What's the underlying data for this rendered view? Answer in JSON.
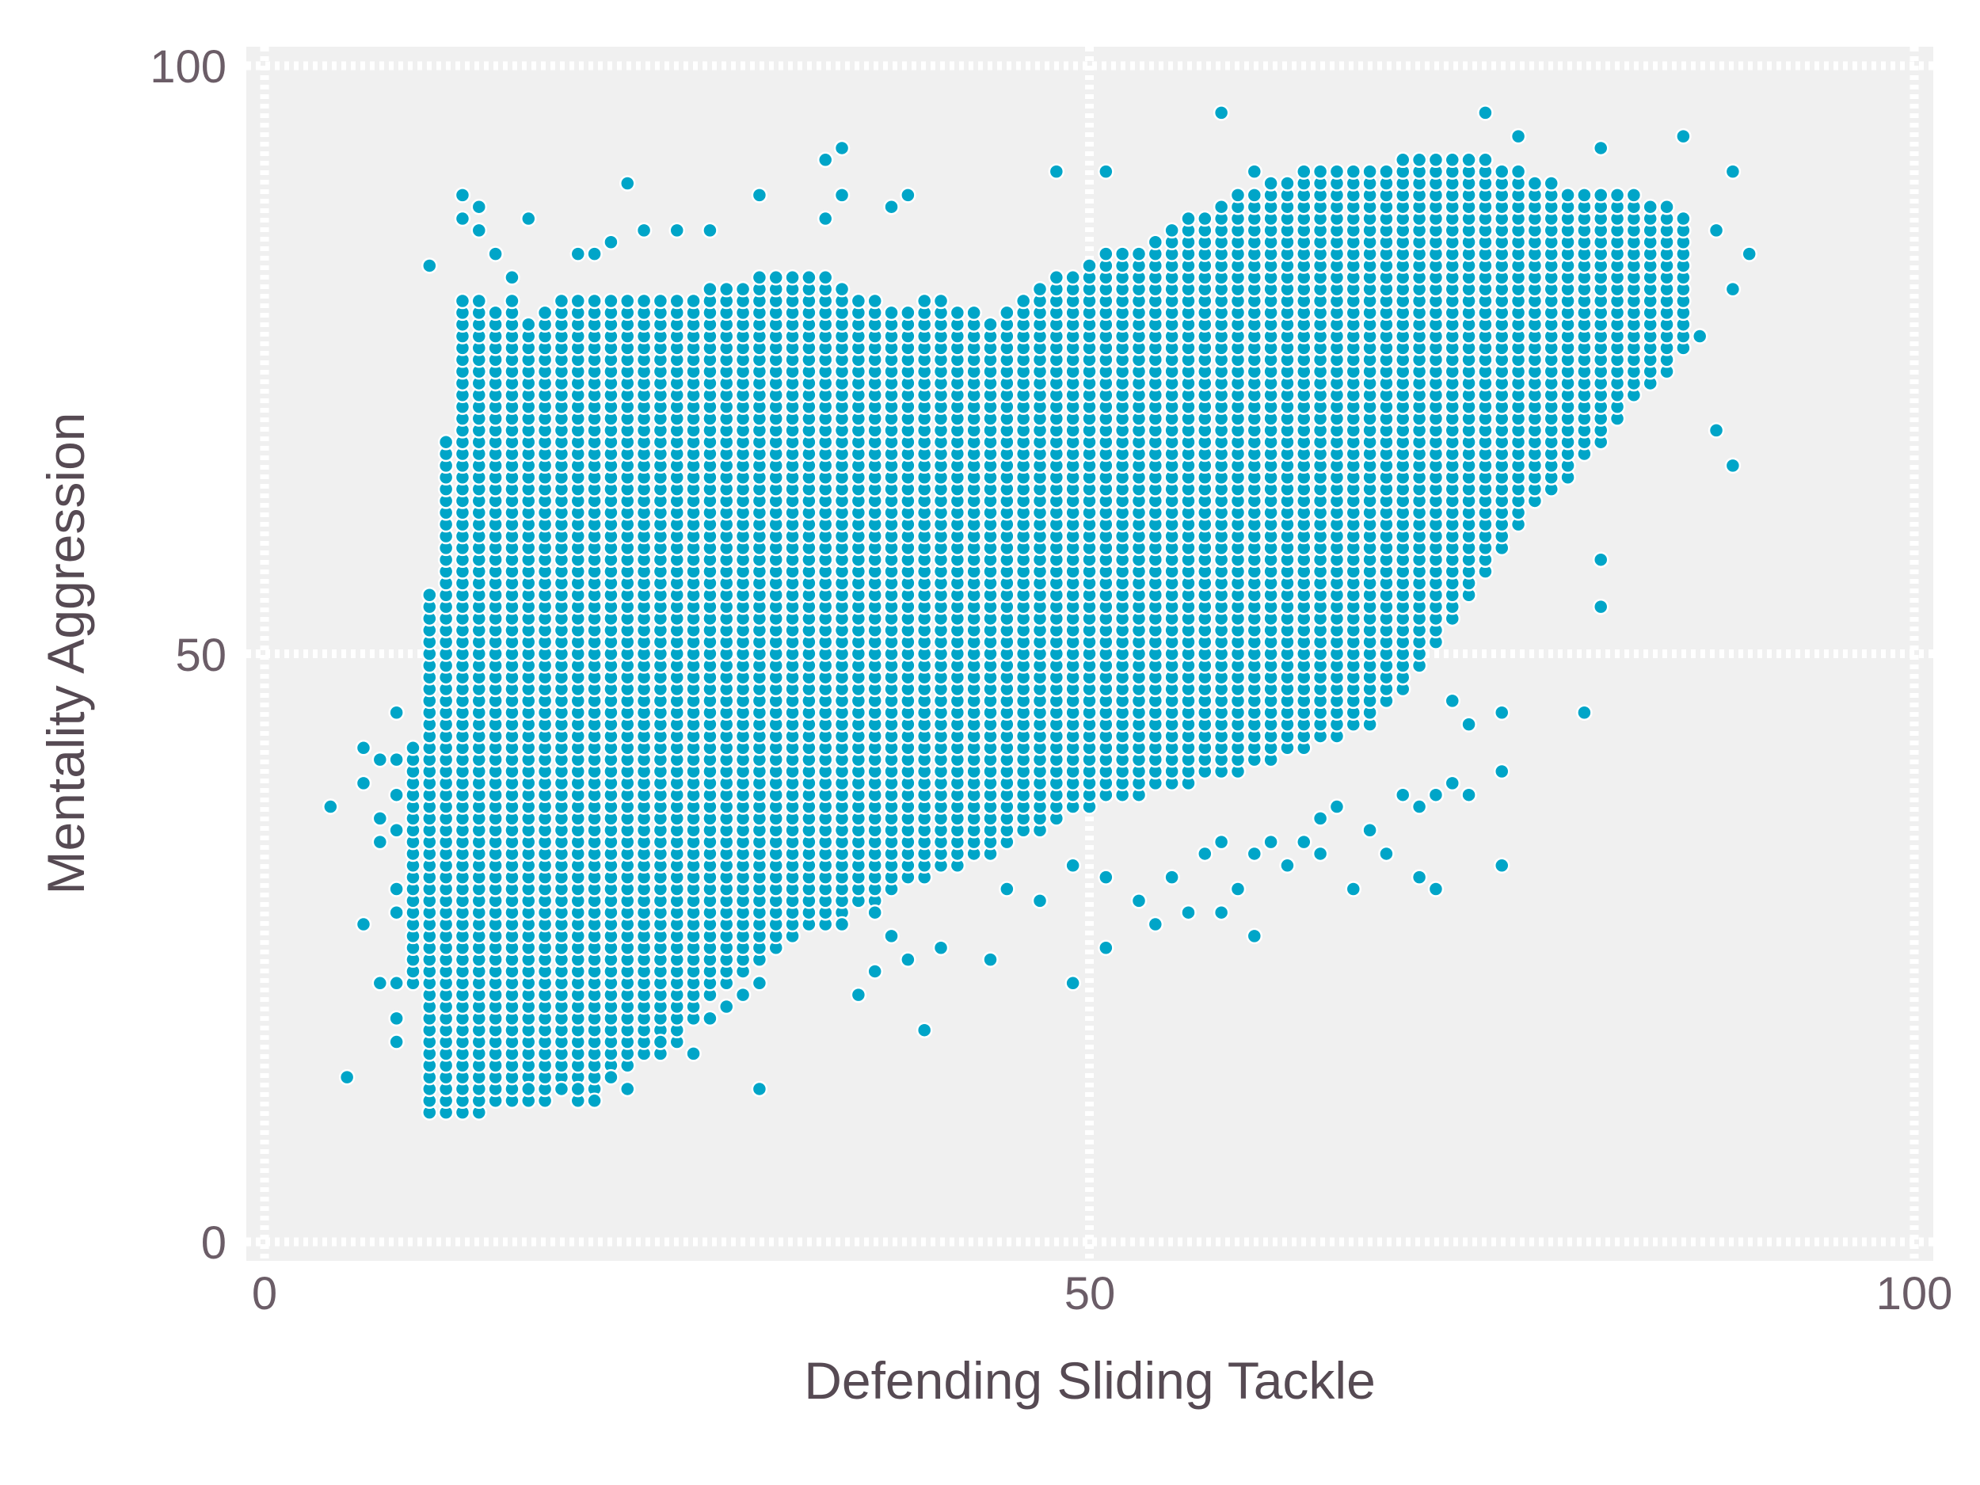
{
  "chart_data": {
    "type": "scatter",
    "title": "",
    "xlabel": "Defending Sliding Tackle",
    "ylabel": "Mentality Aggression",
    "xlim": [
      0,
      100
    ],
    "ylim": [
      0,
      100
    ],
    "x_ticks": [
      "0",
      "50",
      "100"
    ],
    "y_ticks": [
      "0",
      "50",
      "100"
    ],
    "grid": true,
    "grid_style": "dotted",
    "background_color": "#f0f0f0",
    "point_color": "#00a5c8",
    "point_edge_color": "#ffffff",
    "note_values": "integer-valued points; dense region given as per-x inclusive y ranges, plus isolated points",
    "dense_columns": [
      [
        9,
        22,
        42
      ],
      [
        10,
        11,
        55
      ],
      [
        11,
        11,
        68
      ],
      [
        12,
        11,
        80
      ],
      [
        13,
        11,
        80
      ],
      [
        14,
        12,
        79
      ],
      [
        15,
        12,
        80
      ],
      [
        16,
        12,
        78
      ],
      [
        17,
        12,
        79
      ],
      [
        18,
        13,
        80
      ],
      [
        19,
        12,
        80
      ],
      [
        20,
        13,
        80
      ],
      [
        21,
        14,
        80
      ],
      [
        22,
        15,
        80
      ],
      [
        23,
        16,
        80
      ],
      [
        24,
        16,
        80
      ],
      [
        25,
        17,
        80
      ],
      [
        26,
        19,
        80
      ],
      [
        27,
        21,
        81
      ],
      [
        28,
        22,
        81
      ],
      [
        29,
        23,
        81
      ],
      [
        30,
        24,
        82
      ],
      [
        31,
        25,
        82
      ],
      [
        32,
        26,
        82
      ],
      [
        33,
        27,
        82
      ],
      [
        34,
        27,
        82
      ],
      [
        35,
        28,
        81
      ],
      [
        36,
        29,
        80
      ],
      [
        37,
        29,
        80
      ],
      [
        38,
        30,
        79
      ],
      [
        39,
        31,
        79
      ],
      [
        40,
        31,
        80
      ],
      [
        41,
        32,
        80
      ],
      [
        42,
        32,
        79
      ],
      [
        43,
        33,
        79
      ],
      [
        44,
        33,
        78
      ],
      [
        45,
        34,
        79
      ],
      [
        46,
        35,
        80
      ],
      [
        47,
        35,
        81
      ],
      [
        48,
        36,
        82
      ],
      [
        49,
        37,
        82
      ],
      [
        50,
        37,
        83
      ],
      [
        51,
        38,
        84
      ],
      [
        52,
        38,
        84
      ],
      [
        53,
        38,
        84
      ],
      [
        54,
        39,
        85
      ],
      [
        55,
        39,
        86
      ],
      [
        56,
        39,
        87
      ],
      [
        57,
        40,
        87
      ],
      [
        58,
        40,
        88
      ],
      [
        59,
        40,
        89
      ],
      [
        60,
        41,
        89
      ],
      [
        61,
        41,
        90
      ],
      [
        62,
        42,
        90
      ],
      [
        63,
        42,
        90
      ],
      [
        64,
        43,
        91
      ],
      [
        65,
        43,
        91
      ],
      [
        66,
        44,
        91
      ],
      [
        67,
        44,
        91
      ],
      [
        68,
        46,
        91
      ],
      [
        69,
        47,
        92
      ],
      [
        70,
        49,
        92
      ],
      [
        71,
        51,
        92
      ],
      [
        72,
        53,
        92
      ],
      [
        73,
        55,
        92
      ],
      [
        74,
        57,
        92
      ],
      [
        75,
        59,
        91
      ],
      [
        76,
        61,
        91
      ],
      [
        77,
        63,
        90
      ],
      [
        78,
        64,
        90
      ],
      [
        79,
        65,
        89
      ],
      [
        80,
        67,
        89
      ],
      [
        81,
        68,
        89
      ],
      [
        82,
        70,
        89
      ],
      [
        83,
        72,
        89
      ],
      [
        84,
        73,
        88
      ],
      [
        85,
        74,
        88
      ],
      [
        86,
        76,
        87
      ]
    ],
    "points": [
      [
        4,
        37
      ],
      [
        5,
        14
      ],
      [
        6,
        42
      ],
      [
        6,
        39
      ],
      [
        6,
        27
      ],
      [
        7,
        41
      ],
      [
        7,
        36
      ],
      [
        7,
        34
      ],
      [
        7,
        22
      ],
      [
        8,
        45
      ],
      [
        8,
        41
      ],
      [
        8,
        38
      ],
      [
        8,
        35
      ],
      [
        8,
        30
      ],
      [
        8,
        28
      ],
      [
        8,
        22
      ],
      [
        8,
        19
      ],
      [
        8,
        17
      ],
      [
        10,
        83
      ],
      [
        12,
        89
      ],
      [
        12,
        87
      ],
      [
        13,
        86
      ],
      [
        13,
        88
      ],
      [
        14,
        84
      ],
      [
        15,
        82
      ],
      [
        16,
        87
      ],
      [
        19,
        84
      ],
      [
        20,
        84
      ],
      [
        21,
        85
      ],
      [
        22,
        90
      ],
      [
        23,
        86
      ],
      [
        25,
        86
      ],
      [
        27,
        86
      ],
      [
        30,
        89
      ],
      [
        34,
        92
      ],
      [
        35,
        93
      ],
      [
        35,
        89
      ],
      [
        34,
        87
      ],
      [
        38,
        88
      ],
      [
        39,
        89
      ],
      [
        48,
        91
      ],
      [
        51,
        91
      ],
      [
        58,
        96
      ],
      [
        60,
        91
      ],
      [
        63,
        91
      ],
      [
        69,
        92
      ],
      [
        74,
        96
      ],
      [
        76,
        94
      ],
      [
        81,
        93
      ],
      [
        86,
        94
      ],
      [
        89,
        91
      ],
      [
        88,
        86
      ],
      [
        90,
        84
      ],
      [
        89,
        81
      ],
      [
        87,
        77
      ],
      [
        88,
        69
      ],
      [
        89,
        66
      ],
      [
        81,
        58
      ],
      [
        81,
        54
      ],
      [
        80,
        45
      ],
      [
        75,
        45
      ],
      [
        73,
        44
      ],
      [
        72,
        46
      ],
      [
        75,
        40
      ],
      [
        73,
        38
      ],
      [
        72,
        39
      ],
      [
        71,
        38
      ],
      [
        70,
        37
      ],
      [
        69,
        38
      ],
      [
        67,
        35
      ],
      [
        65,
        37
      ],
      [
        64,
        36
      ],
      [
        63,
        34
      ],
      [
        61,
        34
      ],
      [
        60,
        33
      ],
      [
        58,
        34
      ],
      [
        57,
        33
      ],
      [
        55,
        31
      ],
      [
        56,
        28
      ],
      [
        58,
        28
      ],
      [
        59,
        30
      ],
      [
        60,
        26
      ],
      [
        62,
        32
      ],
      [
        64,
        33
      ],
      [
        66,
        30
      ],
      [
        68,
        33
      ],
      [
        70,
        31
      ],
      [
        71,
        30
      ],
      [
        75,
        32
      ],
      [
        54,
        27
      ],
      [
        53,
        29
      ],
      [
        51,
        25
      ],
      [
        51,
        31
      ],
      [
        49,
        22
      ],
      [
        49,
        32
      ],
      [
        47,
        29
      ],
      [
        45,
        30
      ],
      [
        44,
        24
      ],
      [
        41,
        25
      ],
      [
        40,
        18
      ],
      [
        39,
        24
      ],
      [
        38,
        26
      ],
      [
        37,
        23
      ],
      [
        36,
        21
      ],
      [
        37,
        28
      ],
      [
        35,
        27
      ],
      [
        30,
        13
      ],
      [
        30,
        22
      ],
      [
        29,
        21
      ],
      [
        28,
        20
      ],
      [
        27,
        19
      ],
      [
        26,
        16
      ],
      [
        24,
        17
      ],
      [
        22,
        13
      ],
      [
        21,
        14
      ],
      [
        20,
        12
      ],
      [
        19,
        13
      ],
      [
        18,
        13
      ],
      [
        16,
        13
      ]
    ]
  }
}
